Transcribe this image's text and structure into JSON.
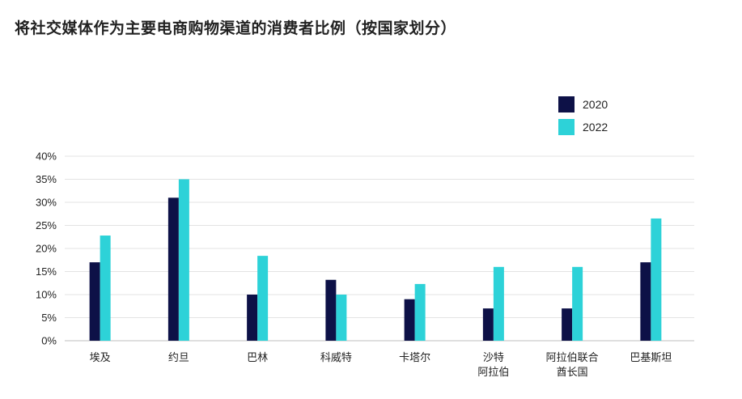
{
  "chart_data": {
    "type": "bar",
    "title": "将社交媒体作为主要电商购物渠道的消费者比例（按国家划分）",
    "categories": [
      [
        "埃及"
      ],
      [
        "约旦"
      ],
      [
        "巴林"
      ],
      [
        "科威特"
      ],
      [
        "卡塔尔"
      ],
      [
        "沙特",
        "阿拉伯"
      ],
      [
        "阿拉伯联合",
        "酋长国"
      ],
      [
        "巴基斯坦"
      ]
    ],
    "series": [
      {
        "name": "2020",
        "color": "#0d1147",
        "values": [
          17,
          31,
          10,
          13.2,
          9,
          7,
          7,
          17
        ]
      },
      {
        "name": "2022",
        "color": "#2dd2d8",
        "values": [
          22.8,
          35,
          18.4,
          10,
          12.3,
          16,
          16,
          26.5
        ]
      }
    ],
    "ylim": [
      0,
      40
    ],
    "yticks": [
      "0%",
      "5%",
      "10%",
      "15%",
      "20%",
      "25%",
      "30%",
      "35%",
      "40%"
    ],
    "grid": true,
    "legend": "top-right"
  }
}
